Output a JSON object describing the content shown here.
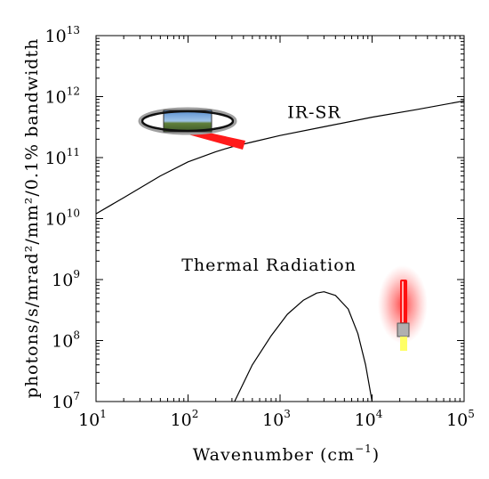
{
  "chart_data": {
    "type": "line",
    "title": "",
    "xlabel": "Wavenumber (cm",
    "xlabel_exponent": "−1",
    "xlabel_suffix": ")",
    "ylabel": "photons/s/mrad²/mm²/0.1% bandwidth",
    "x_scale": "log",
    "y_scale": "log",
    "xlim": [
      10,
      100000
    ],
    "ylim": [
      10000000,
      10000000000000
    ],
    "grid": false,
    "x_ticks": [
      {
        "value": 10,
        "base": "10",
        "exp": "1"
      },
      {
        "value": 100,
        "base": "10",
        "exp": "2"
      },
      {
        "value": 1000,
        "base": "10",
        "exp": "3"
      },
      {
        "value": 10000,
        "base": "10",
        "exp": "4"
      },
      {
        "value": 100000,
        "base": "10",
        "exp": "5"
      }
    ],
    "y_ticks": [
      {
        "value": 10000000,
        "base": "10",
        "exp": "7"
      },
      {
        "value": 100000000,
        "base": "10",
        "exp": "8"
      },
      {
        "value": 1000000000,
        "base": "10",
        "exp": "9"
      },
      {
        "value": 10000000000,
        "base": "10",
        "exp": "10"
      },
      {
        "value": 100000000000,
        "base": "10",
        "exp": "11"
      },
      {
        "value": 1000000000000,
        "base": "10",
        "exp": "12"
      },
      {
        "value": 10000000000000,
        "base": "10",
        "exp": "13"
      }
    ],
    "series": [
      {
        "name": "IR-SR",
        "x": [
          10,
          20,
          50,
          100,
          200,
          300,
          500,
          1000,
          3000,
          10000,
          30000,
          100000
        ],
        "y": [
          12000000000,
          22000000000,
          50000000000,
          85000000000,
          125000000000,
          150000000000,
          180000000000,
          230000000000,
          320000000000,
          460000000000,
          610000000000,
          850000000000
        ]
      },
      {
        "name": "Thermal Radiation",
        "x": [
          320,
          500,
          800,
          1200,
          1800,
          2500,
          3000,
          4000,
          5500,
          7000,
          8500,
          10000
        ],
        "y": [
          10000000,
          40000000,
          120000000,
          270000000,
          460000000,
          600000000,
          630000000,
          550000000,
          330000000,
          130000000,
          40000000,
          10000000
        ]
      }
    ],
    "annotations": [
      {
        "text": "IR-SR",
        "x": 1200,
        "y": 450000000000
      },
      {
        "text": "Thermal Radiation",
        "x": 85,
        "y": 1400000000
      }
    ],
    "line_color": "#000000"
  },
  "icons": {
    "synchrotron": "synchrotron-ring-icon",
    "lamp": "thermal-lamp-icon"
  },
  "colors": {
    "beam": "#ff1a1a",
    "lamp_glow": "#ff4d4d",
    "lamp_base": "#b0b0b0",
    "lamp_tip": "#ffff66"
  }
}
